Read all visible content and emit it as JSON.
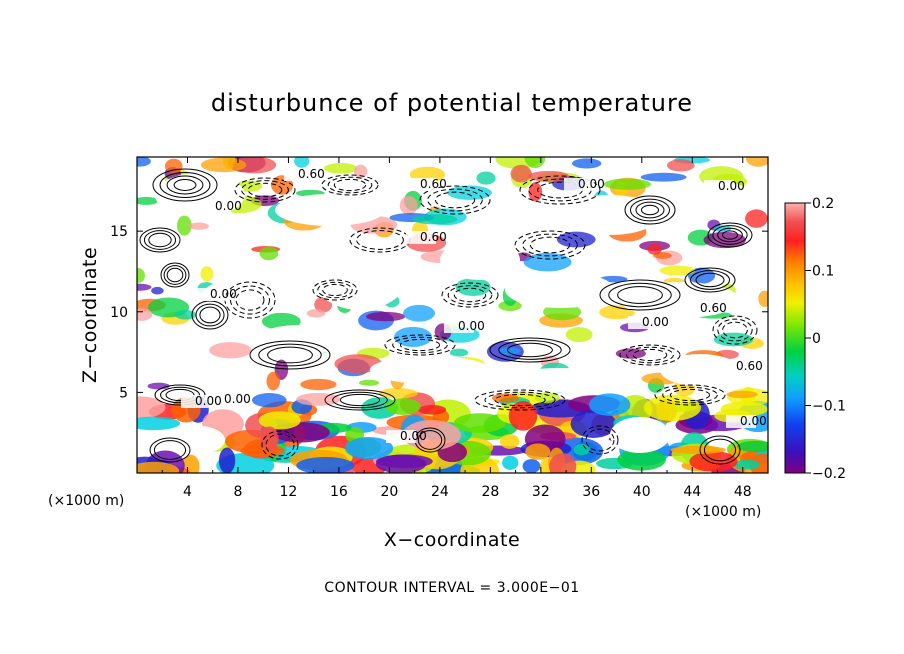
{
  "chart_data": {
    "type": "heatmap",
    "title": "disturbunce of potential temperature",
    "xlabel": "X−coordinate",
    "ylabel": "Z−coordinate",
    "x_unit_label": "(×1000 m)",
    "y_unit_label": "(×1000 m)",
    "footnote": "CONTOUR INTERVAL = 3.000E−01",
    "xlim": [
      0,
      50
    ],
    "ylim": [
      0,
      19.6
    ],
    "x_ticks": [
      4,
      8,
      12,
      16,
      20,
      24,
      28,
      32,
      36,
      40,
      44,
      48
    ],
    "x_tick_labels": [
      "4",
      "8",
      "12",
      "16",
      "20",
      "24",
      "28",
      "32",
      "36",
      "40",
      "44",
      "48"
    ],
    "y_ticks": [
      5,
      10,
      15
    ],
    "y_tick_labels": [
      "5",
      "10",
      "15"
    ],
    "colorbar": {
      "min": -0.2,
      "max": 0.2,
      "ticks": [
        0.2,
        0.1,
        0,
        -0.1,
        -0.2
      ],
      "tick_labels": [
        "0.2",
        "0.1",
        "0",
        "−0.1",
        "−0.2"
      ],
      "colors": [
        "#800080",
        "#6a0fb0",
        "#2020d0",
        "#1060f0",
        "#10a0ff",
        "#00d0e0",
        "#00d0a0",
        "#00d040",
        "#60e000",
        "#c0f000",
        "#f0f000",
        "#ffd000",
        "#ffa000",
        "#ff6000",
        "#ff2020",
        "#f05050",
        "#ffa0a0"
      ]
    },
    "contour_interval": 0.3,
    "contour_labels": [
      "0.60",
      "0.60",
      "0.00",
      "0.00",
      "0.00",
      "0.60",
      "0.00",
      "0.00",
      "0.00",
      "0.60",
      "0.00",
      "0.00",
      "0.00",
      "0.60",
      "0.00"
    ]
  },
  "colors": {
    "background": "#ffffff",
    "frame": "#000000"
  }
}
